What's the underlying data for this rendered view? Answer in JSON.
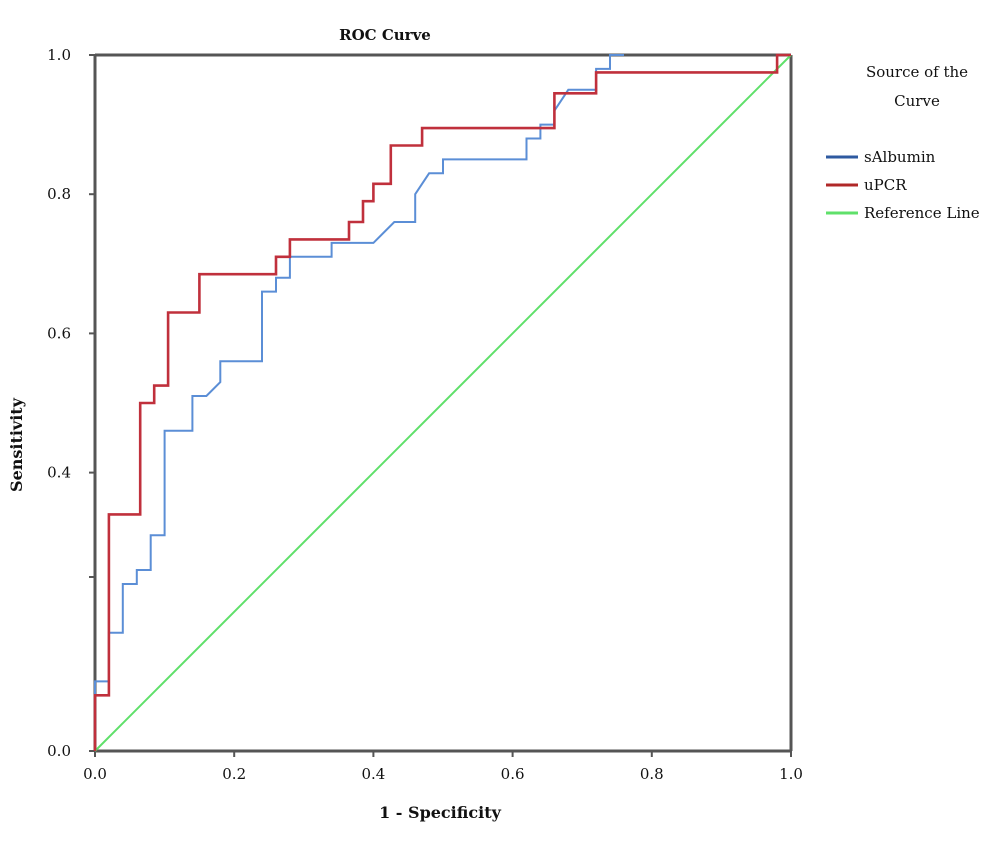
{
  "chart_data": {
    "type": "line",
    "title": "ROC Curve",
    "xlabel": "1 - Specificity",
    "ylabel": "Sensitivity",
    "xlim": [
      0,
      1
    ],
    "ylim": [
      0,
      1
    ],
    "x_ticks": [
      "0.0",
      "0.2",
      "0.4",
      "0.6",
      "0.8",
      "1.0"
    ],
    "y_ticks": [
      "0.0",
      "0.4",
      "0.6",
      "0.8",
      "1.0"
    ],
    "grid": false,
    "legend": {
      "title_lines": [
        "Source of the",
        "Curve"
      ],
      "placement": "right"
    },
    "series": [
      {
        "name": "sAlbumin",
        "color": "#5b8ed6",
        "legend_color": "#2e5aa0",
        "points": [
          [
            0,
            0
          ],
          [
            0,
            0.1
          ],
          [
            0.02,
            0.1
          ],
          [
            0.02,
            0.17
          ],
          [
            0.04,
            0.17
          ],
          [
            0.04,
            0.24
          ],
          [
            0.06,
            0.24
          ],
          [
            0.06,
            0.26
          ],
          [
            0.08,
            0.26
          ],
          [
            0.08,
            0.31
          ],
          [
            0.1,
            0.31
          ],
          [
            0.1,
            0.46
          ],
          [
            0.14,
            0.46
          ],
          [
            0.14,
            0.51
          ],
          [
            0.16,
            0.51
          ],
          [
            0.18,
            0.53
          ],
          [
            0.18,
            0.56
          ],
          [
            0.24,
            0.56
          ],
          [
            0.24,
            0.66
          ],
          [
            0.26,
            0.66
          ],
          [
            0.26,
            0.68
          ],
          [
            0.28,
            0.68
          ],
          [
            0.28,
            0.71
          ],
          [
            0.34,
            0.71
          ],
          [
            0.34,
            0.73
          ],
          [
            0.4,
            0.73
          ],
          [
            0.43,
            0.76
          ],
          [
            0.46,
            0.76
          ],
          [
            0.46,
            0.8
          ],
          [
            0.48,
            0.83
          ],
          [
            0.5,
            0.83
          ],
          [
            0.5,
            0.85
          ],
          [
            0.62,
            0.85
          ],
          [
            0.62,
            0.88
          ],
          [
            0.64,
            0.88
          ],
          [
            0.64,
            0.9
          ],
          [
            0.66,
            0.9
          ],
          [
            0.66,
            0.92
          ],
          [
            0.68,
            0.95
          ],
          [
            0.72,
            0.95
          ],
          [
            0.72,
            0.98
          ],
          [
            0.74,
            0.98
          ],
          [
            0.74,
            1.0
          ],
          [
            0.76,
            1.0
          ]
        ]
      },
      {
        "name": "uPCR",
        "color": "#c0303c",
        "legend_color": "#b02828",
        "points": [
          [
            0,
            0
          ],
          [
            0,
            0.08
          ],
          [
            0.02,
            0.08
          ],
          [
            0.02,
            0.34
          ],
          [
            0.065,
            0.34
          ],
          [
            0.065,
            0.5
          ],
          [
            0.085,
            0.5
          ],
          [
            0.085,
            0.525
          ],
          [
            0.105,
            0.525
          ],
          [
            0.105,
            0.63
          ],
          [
            0.15,
            0.63
          ],
          [
            0.15,
            0.685
          ],
          [
            0.26,
            0.685
          ],
          [
            0.26,
            0.71
          ],
          [
            0.28,
            0.71
          ],
          [
            0.28,
            0.735
          ],
          [
            0.365,
            0.735
          ],
          [
            0.365,
            0.76
          ],
          [
            0.385,
            0.76
          ],
          [
            0.385,
            0.79
          ],
          [
            0.4,
            0.79
          ],
          [
            0.4,
            0.815
          ],
          [
            0.425,
            0.815
          ],
          [
            0.425,
            0.87
          ],
          [
            0.47,
            0.87
          ],
          [
            0.47,
            0.895
          ],
          [
            0.66,
            0.895
          ],
          [
            0.66,
            0.945
          ],
          [
            0.72,
            0.945
          ],
          [
            0.72,
            0.975
          ],
          [
            0.98,
            0.975
          ],
          [
            0.98,
            1.0
          ],
          [
            1.0,
            1.0
          ]
        ]
      },
      {
        "name": "Reference Line",
        "color": "#5fe06a",
        "legend_color": "#5fe06a",
        "points": [
          [
            0,
            0
          ],
          [
            1,
            1
          ]
        ]
      }
    ]
  }
}
